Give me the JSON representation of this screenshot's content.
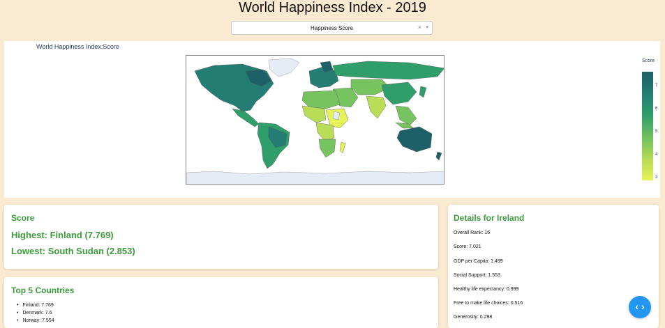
{
  "page": {
    "title": "World Happiness Index - 2019"
  },
  "dropdown": {
    "selected": "Happiness Score",
    "clear_glyph": "×",
    "arrow_glyph": "▾"
  },
  "map": {
    "title": "World Happiness Index:Score",
    "legend": {
      "title": "Score",
      "ticks": [
        "7",
        "6",
        "5",
        "4",
        "3"
      ]
    },
    "colors": {
      "high": "#1d6068",
      "mid": "#2f9e6a",
      "low": "#e6f25a",
      "nodata": "#e5ecf6"
    }
  },
  "score_card": {
    "heading": "Score",
    "highest": "Highest: Finland (7.769)",
    "lowest": "Lowest: South Sudan (2.853)"
  },
  "top5": {
    "heading": "Top 5 Countries",
    "items": [
      "Finland: 7.769",
      "Denmark: 7.6",
      "Norway: 7.554"
    ]
  },
  "details": {
    "heading": "Details for Ireland",
    "rows": [
      "Overall Rank: 16",
      "Score: 7.021",
      "GDP per Capita: 1.499",
      "Social Support: 1.553",
      "Healthy life expectancy: 0.999",
      "Free to make life choices: 0.516",
      "Generosity: 0.298"
    ]
  },
  "fab": {
    "icon": "‹ ›"
  }
}
